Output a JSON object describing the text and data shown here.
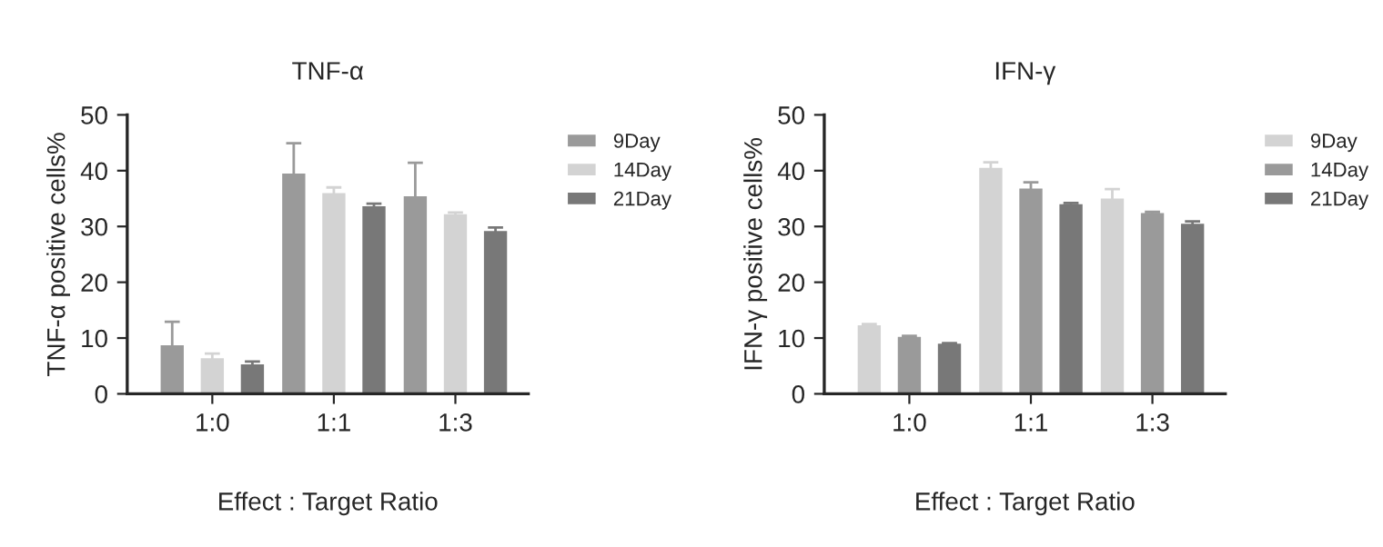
{
  "chart_data": [
    {
      "type": "bar",
      "title": "TNF-α",
      "xlabel": "Effect : Target Ratio",
      "ylabel": "TNF-α positive cells%",
      "categories": [
        "1:0",
        "1:1",
        "1:3"
      ],
      "ylim": [
        0,
        50
      ],
      "yticks": [
        0,
        10,
        20,
        30,
        40,
        50
      ],
      "legend": "right",
      "grid": false,
      "series": [
        {
          "name": "9Day",
          "color": "#9a9a9a",
          "values": [
            8.7,
            39.5,
            35.4
          ],
          "errors": [
            4.2,
            5.4,
            6.0
          ]
        },
        {
          "name": "14Day",
          "color": "#d3d3d3",
          "values": [
            6.4,
            36.0,
            32.2
          ],
          "errors": [
            0.8,
            1.0,
            0.3
          ]
        },
        {
          "name": "21Day",
          "color": "#787878",
          "values": [
            5.3,
            33.6,
            29.2
          ],
          "errors": [
            0.5,
            0.5,
            0.6
          ]
        }
      ]
    },
    {
      "type": "bar",
      "title": "IFN-γ",
      "xlabel": "Effect : Target Ratio",
      "ylabel": "IFN-γ positive cells%",
      "categories": [
        "1:0",
        "1:1",
        "1:3"
      ],
      "ylim": [
        0,
        50
      ],
      "yticks": [
        0,
        10,
        20,
        30,
        40,
        50
      ],
      "legend": "right",
      "grid": false,
      "series": [
        {
          "name": "9Day",
          "color": "#d3d3d3",
          "values": [
            12.3,
            40.5,
            35.0
          ],
          "errors": [
            0.2,
            1.0,
            1.7
          ]
        },
        {
          "name": "14Day",
          "color": "#9a9a9a",
          "values": [
            10.2,
            36.8,
            32.4
          ],
          "errors": [
            0.2,
            1.1,
            0.2
          ]
        },
        {
          "name": "21Day",
          "color": "#787878",
          "values": [
            9.0,
            34.0,
            30.5
          ],
          "errors": [
            0.1,
            0.2,
            0.4
          ]
        }
      ]
    }
  ]
}
